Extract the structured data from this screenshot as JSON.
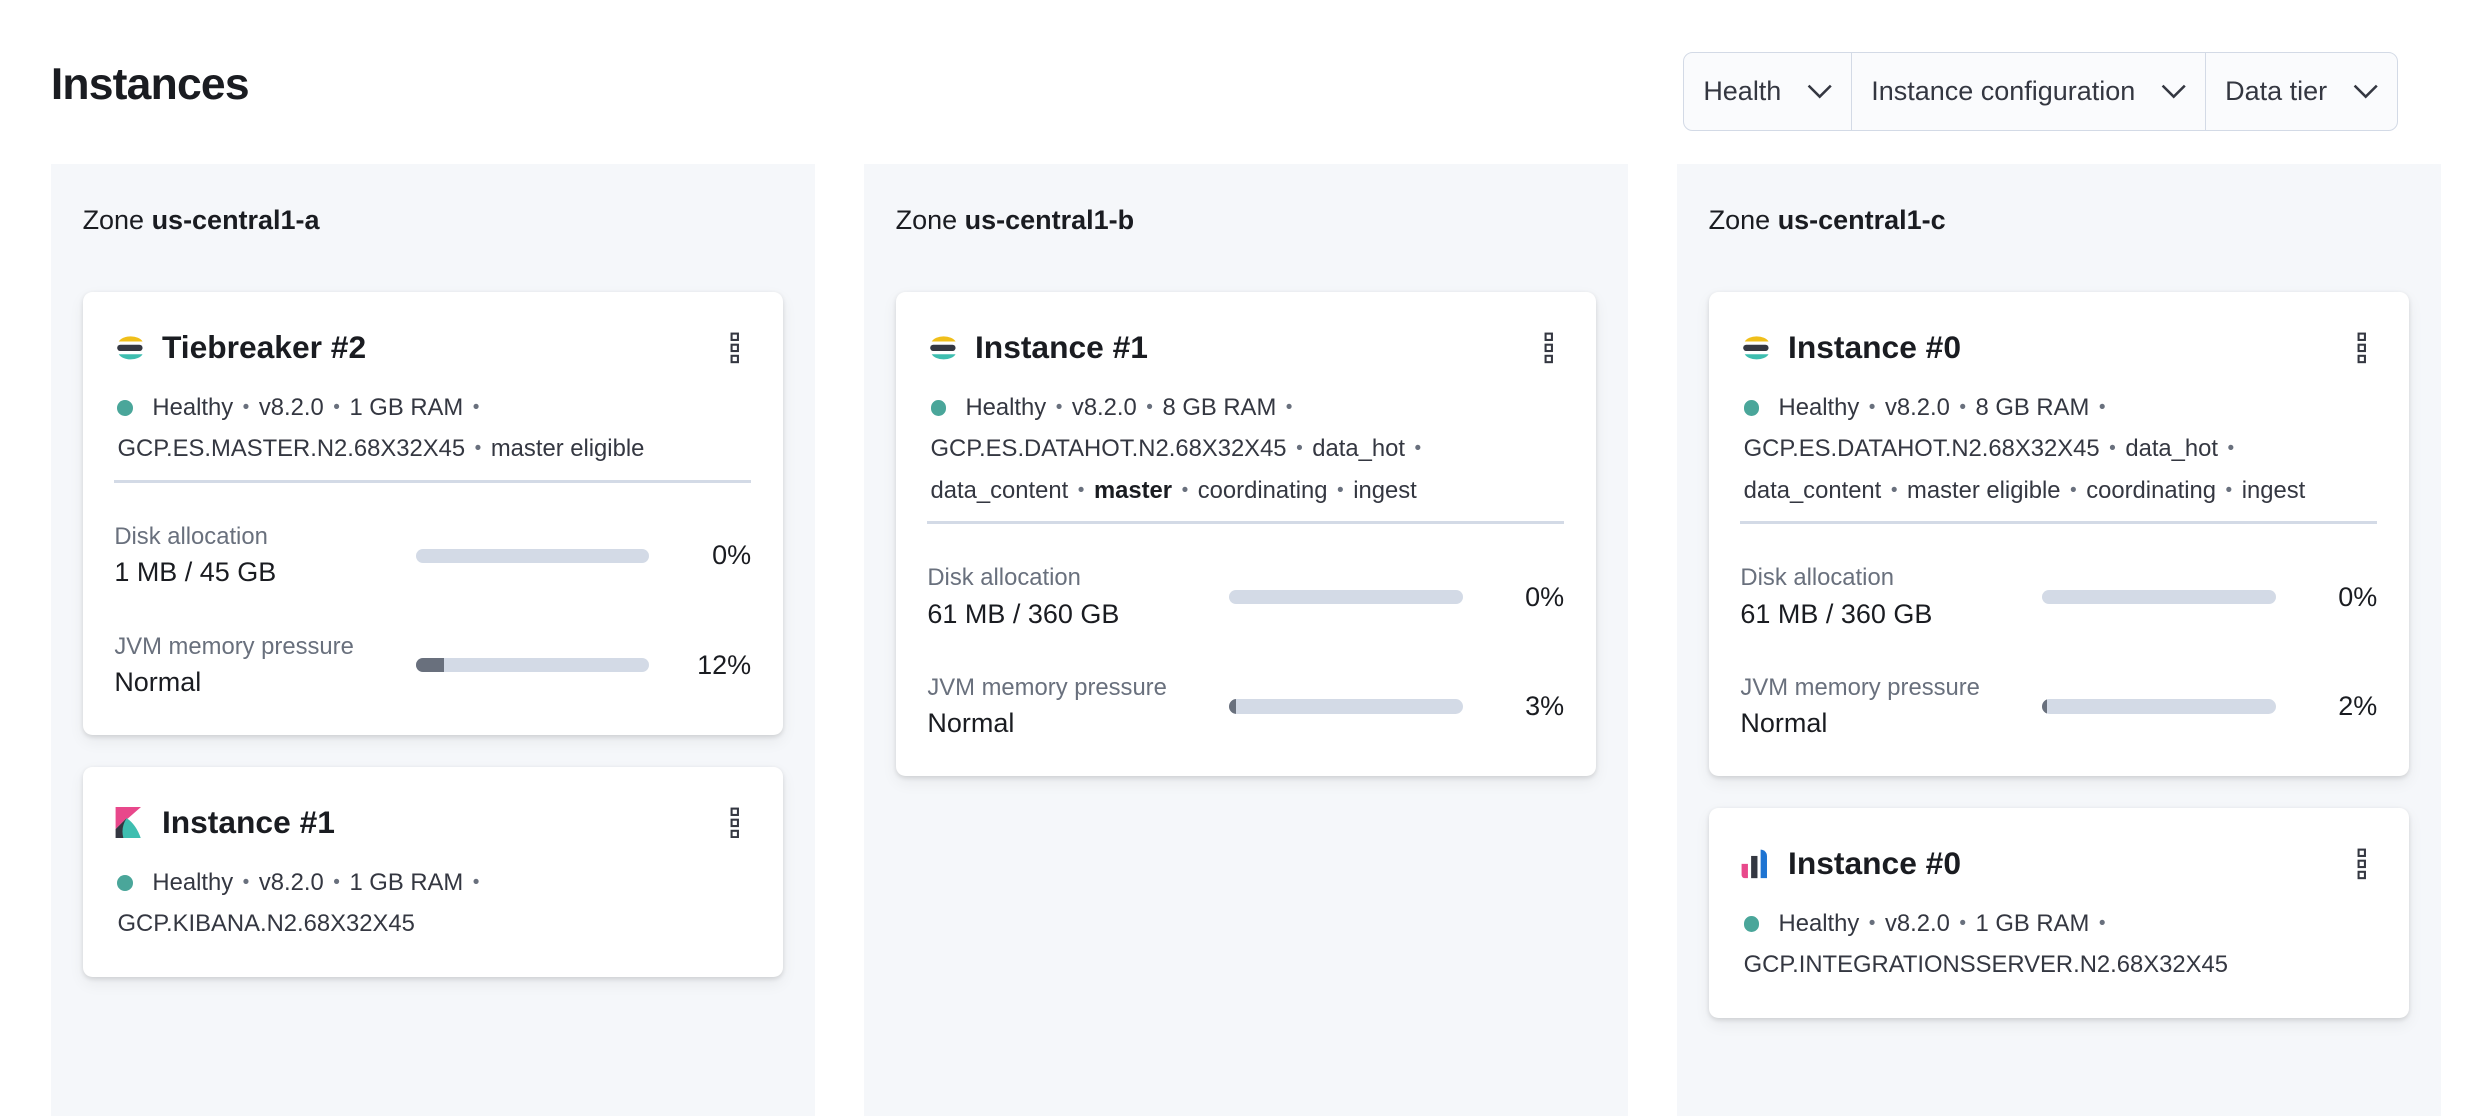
{
  "page_title": "Instances",
  "filters": [
    {
      "label": "Health"
    },
    {
      "label": "Instance configuration"
    },
    {
      "label": "Data tier"
    }
  ],
  "colors": {
    "healthy": "#4aa69a",
    "bar_fill": "#69707d",
    "bar_track": "#d3dae6",
    "zone_bg": "#f5f7fa"
  },
  "zones": [
    {
      "prefix": "Zone",
      "name": "us-central1-a",
      "cards": [
        {
          "icon": "elasticsearch-icon",
          "name": "Tiebreaker #2",
          "top": 81,
          "lines": [
            [
              {
                "t": "Healthy"
              },
              {
                "t": "v8.2.0"
              },
              {
                "t": "1 GB RAM"
              }
            ],
            [
              {
                "t": "GCP.ES.MASTER.N2.68X32X45"
              },
              {
                "t": "master eligible"
              }
            ]
          ],
          "metrics": [
            {
              "label": "Disk allocation",
              "value": "1 MB / 45 GB",
              "percent": 0,
              "percent_label": "0%"
            },
            {
              "label": "JVM memory pressure",
              "value": "Normal",
              "percent": 12,
              "percent_label": "12%"
            }
          ]
        },
        {
          "icon": "kibana-icon",
          "name": "Instance #1",
          "top": 380,
          "lines": [
            [
              {
                "t": "Healthy"
              },
              {
                "t": "v8.2.0"
              },
              {
                "t": "1 GB RAM"
              }
            ],
            [
              {
                "t": "GCP.KIBANA.N2.68X32X45"
              }
            ]
          ],
          "metrics": []
        }
      ]
    },
    {
      "prefix": "Zone",
      "name": "us-central1-b",
      "cards": [
        {
          "icon": "elasticsearch-icon",
          "name": "Instance #1",
          "top": 81,
          "lines": [
            [
              {
                "t": "Healthy"
              },
              {
                "t": "v8.2.0"
              },
              {
                "t": "8 GB RAM"
              }
            ],
            [
              {
                "t": "GCP.ES.DATAHOT.N2.68X32X45"
              },
              {
                "t": "data_hot"
              }
            ],
            [
              {
                "t": "data_content"
              },
              {
                "t": "master",
                "b": true
              },
              {
                "t": "coordinating"
              },
              {
                "t": "ingest"
              }
            ]
          ],
          "metrics": [
            {
              "label": "Disk allocation",
              "value": "61 MB / 360 GB",
              "percent": 0,
              "percent_label": "0%"
            },
            {
              "label": "JVM memory pressure",
              "value": "Normal",
              "percent": 3,
              "percent_label": "3%"
            }
          ]
        }
      ]
    },
    {
      "prefix": "Zone",
      "name": "us-central1-c",
      "cards": [
        {
          "icon": "elasticsearch-icon",
          "name": "Instance #0",
          "top": 81,
          "lines": [
            [
              {
                "t": "Healthy"
              },
              {
                "t": "v8.2.0"
              },
              {
                "t": "8 GB RAM"
              }
            ],
            [
              {
                "t": "GCP.ES.DATAHOT.N2.68X32X45"
              },
              {
                "t": "data_hot"
              }
            ],
            [
              {
                "t": "data_content"
              },
              {
                "t": "master eligible"
              },
              {
                "t": "coordinating"
              },
              {
                "t": "ingest"
              }
            ]
          ],
          "metrics": [
            {
              "label": "Disk allocation",
              "value": "61 MB / 360 GB",
              "percent": 0,
              "percent_label": "0%"
            },
            {
              "label": "JVM memory pressure",
              "value": "Normal",
              "percent": 2,
              "percent_label": "2%"
            }
          ]
        },
        {
          "icon": "integrations-server-icon",
          "name": "Instance #0",
          "top": 406,
          "lines": [
            [
              {
                "t": "Healthy"
              },
              {
                "t": "v8.2.0"
              },
              {
                "t": "1 GB RAM"
              }
            ],
            [
              {
                "t": "GCP.INTEGRATIONSSERVER.N2.68X32X45"
              }
            ]
          ],
          "metrics": []
        }
      ]
    }
  ]
}
